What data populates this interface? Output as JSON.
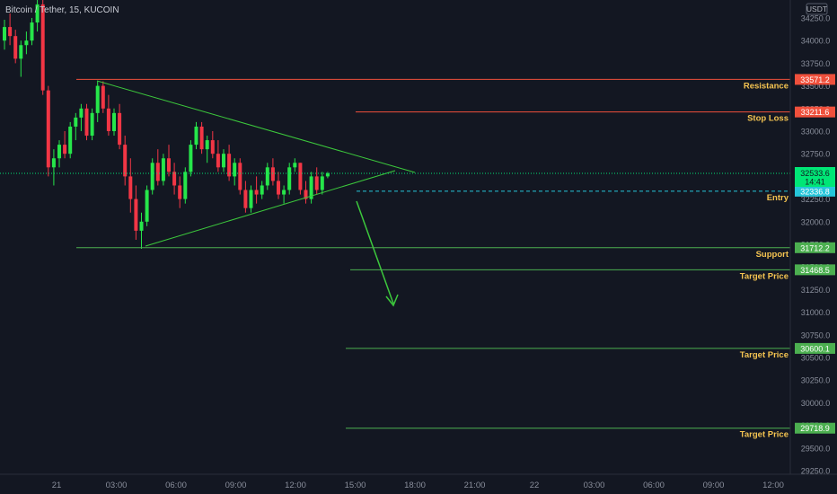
{
  "header": {
    "symbol_title": "Bitcoin / Tether, 15, KUCOIN",
    "currency_badge": "USDT"
  },
  "price_axis": {
    "ticks": [
      {
        "value": 34250,
        "label": "34250.0"
      },
      {
        "value": 34000,
        "label": "34000.0"
      },
      {
        "value": 33750,
        "label": "33750.0"
      },
      {
        "value": 33500,
        "label": "33500.0"
      },
      {
        "value": 33250,
        "label": "33250.0"
      },
      {
        "value": 33000,
        "label": "33000.0"
      },
      {
        "value": 32750,
        "label": "32750.0"
      },
      {
        "value": 32500,
        "label": "32500.0"
      },
      {
        "value": 32250,
        "label": "32250.0"
      },
      {
        "value": 32000,
        "label": "32000.0"
      },
      {
        "value": 31750,
        "label": "31750.0"
      },
      {
        "value": 31500,
        "label": "31500.0"
      },
      {
        "value": 31250,
        "label": "31250.0"
      },
      {
        "value": 31000,
        "label": "31000.0"
      },
      {
        "value": 30750,
        "label": "30750.0"
      },
      {
        "value": 30500,
        "label": "30500.0"
      },
      {
        "value": 30250,
        "label": "30250.0"
      },
      {
        "value": 30000,
        "label": "30000.0"
      },
      {
        "value": 29750,
        "label": "29750.0"
      },
      {
        "value": 29500,
        "label": "29500.0"
      },
      {
        "value": 29250,
        "label": "29250.0"
      }
    ]
  },
  "time_axis": {
    "labels": [
      "21",
      "03:00",
      "06:00",
      "09:00",
      "12:00",
      "15:00",
      "18:00",
      "21:00",
      "22",
      "03:00",
      "06:00",
      "09:00",
      "12:00"
    ]
  },
  "levels": [
    {
      "name": "Resistance",
      "price": 33571.2,
      "badge": "33571.2",
      "color": "#f0503c"
    },
    {
      "name": "Stop Loss",
      "price": 33211.6,
      "badge": "33211.6",
      "color": "#f0503c"
    },
    {
      "name": "Support",
      "price": 31712.2,
      "badge": "31712.2",
      "color": "#4caf50"
    },
    {
      "name": "Target Price",
      "price": 31468.5,
      "badge": "31468.5",
      "color": "#4caf50"
    },
    {
      "name": "Target Price",
      "price": 30600.1,
      "badge": "30600.1",
      "color": "#4caf50"
    },
    {
      "name": "Target Price",
      "price": 29718.9,
      "badge": "29718.9",
      "color": "#4caf50"
    }
  ],
  "entry": {
    "name": "Entry",
    "price": 32336.8,
    "badge": "32336.8",
    "color": "#26c6da"
  },
  "last_price": {
    "badge": "32533.6",
    "countdown": "14:41",
    "color": "#00e676"
  },
  "colors": {
    "background": "#131722",
    "up_candle": "#26e64a",
    "down_candle": "#f23645",
    "pattern_lines": "#3cc83c",
    "label_text": "#f5c451"
  },
  "chart_data": {
    "type": "candlestick",
    "title": "Bitcoin / Tether, 15, KUCOIN",
    "ylim": [
      29150,
      34500
    ],
    "y_unit": "USDT",
    "candles_ohlc": [
      [
        34000,
        34230,
        33900,
        34150
      ],
      [
        34150,
        34300,
        33950,
        34050
      ],
      [
        34050,
        34120,
        33750,
        33800
      ],
      [
        33800,
        34000,
        33600,
        33950
      ],
      [
        33950,
        34100,
        33850,
        34000
      ],
      [
        34000,
        34250,
        33950,
        34200
      ],
      [
        34200,
        34500,
        34100,
        34400
      ],
      [
        34400,
        34500,
        33400,
        33450
      ],
      [
        33450,
        33500,
        32500,
        32600
      ],
      [
        32600,
        32800,
        32400,
        32700
      ],
      [
        32700,
        32900,
        32600,
        32850
      ],
      [
        32850,
        33000,
        32700,
        32750
      ],
      [
        32750,
        33100,
        32700,
        33050
      ],
      [
        33050,
        33200,
        32900,
        33150
      ],
      [
        33150,
        33300,
        33000,
        33250
      ],
      [
        33250,
        33300,
        32900,
        32950
      ],
      [
        32950,
        33250,
        32900,
        33200
      ],
      [
        33200,
        33550,
        33100,
        33500
      ],
      [
        33500,
        33550,
        33200,
        33250
      ],
      [
        33250,
        33400,
        32950,
        33000
      ],
      [
        33000,
        33250,
        32950,
        33200
      ],
      [
        33200,
        33300,
        32800,
        32850
      ],
      [
        32850,
        32950,
        32400,
        32500
      ],
      [
        32500,
        32700,
        32100,
        32250
      ],
      [
        32250,
        32400,
        31800,
        31900
      ],
      [
        31900,
        32100,
        31700,
        32000
      ],
      [
        32000,
        32400,
        31950,
        32350
      ],
      [
        32350,
        32700,
        32300,
        32650
      ],
      [
        32650,
        32800,
        32400,
        32450
      ],
      [
        32450,
        32750,
        32400,
        32700
      ],
      [
        32700,
        32850,
        32500,
        32550
      ],
      [
        32550,
        32650,
        32300,
        32400
      ],
      [
        32400,
        32500,
        32150,
        32250
      ],
      [
        32250,
        32600,
        32200,
        32550
      ],
      [
        32550,
        32900,
        32500,
        32850
      ],
      [
        32850,
        33100,
        32800,
        33050
      ],
      [
        33050,
        33100,
        32750,
        32800
      ],
      [
        32800,
        32950,
        32650,
        32900
      ],
      [
        32900,
        33000,
        32700,
        32750
      ],
      [
        32750,
        32900,
        32550,
        32600
      ],
      [
        32600,
        32800,
        32550,
        32750
      ],
      [
        32750,
        32850,
        32450,
        32500
      ],
      [
        32500,
        32700,
        32400,
        32650
      ],
      [
        32650,
        32700,
        32300,
        32350
      ],
      [
        32350,
        32450,
        32100,
        32150
      ],
      [
        32150,
        32400,
        32100,
        32350
      ],
      [
        32350,
        32500,
        32200,
        32300
      ],
      [
        32300,
        32450,
        32250,
        32400
      ],
      [
        32400,
        32650,
        32350,
        32600
      ],
      [
        32600,
        32700,
        32400,
        32450
      ],
      [
        32450,
        32550,
        32250,
        32300
      ],
      [
        32300,
        32400,
        32200,
        32350
      ],
      [
        32350,
        32650,
        32300,
        32600
      ],
      [
        32600,
        32700,
        32550,
        32650
      ],
      [
        32650,
        32650,
        32300,
        32350
      ],
      [
        32350,
        32450,
        32200,
        32250
      ],
      [
        32250,
        32550,
        32200,
        32500
      ],
      [
        32500,
        32600,
        32300,
        32350
      ],
      [
        32350,
        32550,
        32300,
        32500
      ],
      [
        32500,
        32550,
        32480,
        32533.6
      ]
    ]
  }
}
